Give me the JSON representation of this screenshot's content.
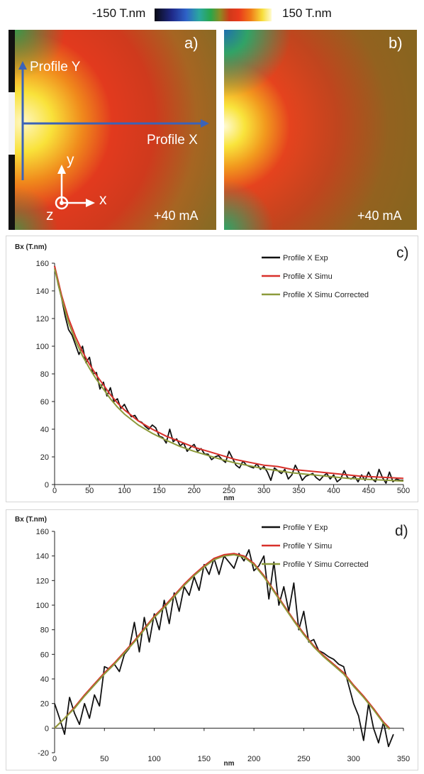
{
  "colorbar": {
    "min_label": "-150 T.nm",
    "max_label": "150 T.nm",
    "colors": [
      "#0a0a14",
      "#1f2a8a",
      "#2e62c7",
      "#2aa7a0",
      "#29a64a",
      "#8c8a22",
      "#d0391a",
      "#e83a1c",
      "#f07a18",
      "#f7dd3a",
      "#fffbd0"
    ]
  },
  "panel_a": {
    "tag": "a)",
    "profile_y": "Profile Y",
    "profile_x": "Profile X",
    "current": "+40 mA",
    "axis_y": "y",
    "axis_x": "x",
    "axis_z": "z"
  },
  "panel_b": {
    "tag": "b)",
    "current": "+40 mA"
  },
  "chart_data": [
    {
      "type": "line",
      "panel_tag": "c)",
      "ylabel": "Bx (T.nm)",
      "xlabel": "nm",
      "xlim": [
        0,
        500
      ],
      "ylim": [
        0,
        160
      ],
      "xticks": [
        0,
        50,
        100,
        150,
        200,
        250,
        300,
        350,
        400,
        450,
        500
      ],
      "yticks": [
        0,
        20,
        40,
        60,
        80,
        100,
        120,
        140,
        160
      ],
      "grid": false,
      "legend_position": "top-right",
      "series": [
        {
          "name": "Profile X Exp",
          "color": "#111111",
          "x": [
            0,
            5,
            10,
            15,
            20,
            25,
            30,
            35,
            40,
            45,
            50,
            55,
            60,
            65,
            70,
            75,
            80,
            85,
            90,
            95,
            100,
            105,
            110,
            115,
            120,
            125,
            130,
            135,
            140,
            145,
            150,
            155,
            160,
            165,
            170,
            175,
            180,
            185,
            190,
            195,
            200,
            205,
            210,
            215,
            220,
            225,
            230,
            235,
            240,
            245,
            250,
            255,
            260,
            265,
            270,
            275,
            280,
            285,
            290,
            295,
            300,
            305,
            310,
            315,
            320,
            325,
            330,
            335,
            340,
            345,
            350,
            355,
            360,
            365,
            370,
            375,
            380,
            385,
            390,
            395,
            400,
            405,
            410,
            415,
            420,
            425,
            430,
            435,
            440,
            445,
            450,
            455,
            460,
            465,
            470,
            475,
            480,
            485,
            490,
            495,
            500
          ],
          "y": [
            158,
            145,
            135,
            122,
            112,
            108,
            101,
            94,
            100,
            88,
            92,
            80,
            81,
            69,
            74,
            64,
            70,
            60,
            62,
            55,
            58,
            53,
            49,
            50,
            46,
            45,
            42,
            40,
            43,
            41,
            35,
            34,
            30,
            40,
            31,
            33,
            28,
            30,
            24,
            27,
            29,
            24,
            26,
            22,
            22,
            18,
            20,
            21,
            18,
            16,
            24,
            19,
            14,
            12,
            17,
            14,
            13,
            12,
            15,
            11,
            13,
            9,
            3,
            12,
            10,
            8,
            11,
            4,
            7,
            14,
            9,
            3,
            6,
            7,
            8,
            5,
            3,
            6,
            8,
            4,
            7,
            2,
            4,
            10,
            5,
            4,
            6,
            2,
            7,
            3,
            9,
            4,
            2,
            11,
            5,
            1,
            9,
            2,
            4,
            3,
            3
          ]
        },
        {
          "name": "Profile X Simu",
          "color": "#d8302a",
          "x": [
            0,
            10,
            20,
            30,
            40,
            50,
            60,
            70,
            80,
            90,
            100,
            120,
            140,
            160,
            180,
            200,
            220,
            240,
            260,
            280,
            300,
            320,
            340,
            360,
            380,
            400,
            420,
            440,
            460,
            480,
            500
          ],
          "y": [
            158,
            137,
            120,
            107,
            96,
            87,
            79,
            72,
            65,
            59,
            54,
            46,
            40,
            35,
            31,
            27,
            24,
            21,
            18,
            16,
            14,
            13,
            11,
            10,
            9,
            8,
            7,
            6,
            5.5,
            5,
            4.5
          ]
        },
        {
          "name": "Profile X Simu Corrected",
          "color": "#8c9a3a",
          "x": [
            0,
            10,
            20,
            30,
            40,
            50,
            60,
            70,
            80,
            90,
            100,
            120,
            140,
            160,
            180,
            200,
            220,
            240,
            260,
            280,
            300,
            320,
            340,
            360,
            380,
            400,
            420,
            440,
            460,
            480,
            500
          ],
          "y": [
            156,
            135,
            117,
            104,
            93,
            84,
            76,
            69,
            62,
            56,
            51,
            43,
            37,
            32,
            27.5,
            24,
            21,
            18,
            15.5,
            13.5,
            11.5,
            10,
            8.5,
            7.5,
            6.5,
            5.5,
            4.5,
            4,
            3.5,
            3,
            2.5
          ]
        }
      ]
    },
    {
      "type": "line",
      "panel_tag": "d)",
      "ylabel": "Bx (T.nm)",
      "xlabel": "nm",
      "xlim": [
        0,
        350
      ],
      "ylim": [
        -20,
        160
      ],
      "xticks": [
        0,
        50,
        100,
        150,
        200,
        250,
        300,
        350
      ],
      "yticks": [
        -20,
        0,
        20,
        40,
        60,
        80,
        100,
        120,
        140,
        160
      ],
      "grid": false,
      "legend_position": "top-right",
      "series": [
        {
          "name": "Profile Y Exp",
          "color": "#111111",
          "x": [
            0,
            5,
            10,
            15,
            20,
            25,
            30,
            35,
            40,
            45,
            50,
            55,
            60,
            65,
            70,
            75,
            80,
            85,
            90,
            95,
            100,
            105,
            110,
            115,
            120,
            125,
            130,
            135,
            140,
            145,
            150,
            155,
            160,
            165,
            170,
            175,
            180,
            185,
            190,
            195,
            200,
            205,
            210,
            215,
            220,
            225,
            230,
            235,
            240,
            245,
            250,
            255,
            260,
            265,
            270,
            275,
            280,
            285,
            290,
            295,
            300,
            305,
            310,
            315,
            320,
            325,
            330,
            335,
            340
          ],
          "y": [
            20,
            8,
            -5,
            25,
            12,
            3,
            20,
            8,
            27,
            18,
            50,
            48,
            52,
            46,
            60,
            65,
            86,
            62,
            90,
            70,
            93,
            80,
            104,
            85,
            110,
            95,
            115,
            108,
            123,
            112,
            133,
            125,
            138,
            125,
            140,
            135,
            130,
            142,
            136,
            145,
            128,
            132,
            140,
            105,
            135,
            100,
            115,
            95,
            118,
            80,
            95,
            70,
            72,
            63,
            61,
            58,
            56,
            52,
            50,
            35,
            20,
            10,
            -10,
            20,
            0,
            -12,
            5,
            -15,
            -5
          ]
        },
        {
          "name": "Profile Y Simu",
          "color": "#d8302a",
          "x": [
            0,
            10,
            20,
            30,
            40,
            50,
            60,
            70,
            80,
            90,
            100,
            110,
            120,
            130,
            140,
            150,
            160,
            170,
            180,
            190,
            200,
            210,
            220,
            230,
            240,
            250,
            260,
            270,
            280,
            290,
            300,
            310,
            320,
            330,
            336
          ],
          "y": [
            0,
            8,
            17,
            27,
            36,
            45,
            53,
            62,
            71,
            81,
            91,
            99,
            108,
            117,
            125,
            132,
            138,
            141,
            142,
            140,
            134,
            124,
            112,
            100,
            88,
            77,
            67,
            59,
            52,
            45,
            35,
            26,
            16,
            5,
            0
          ]
        },
        {
          "name": "Profile Y Simu Corrected",
          "color": "#8c9a3a",
          "x": [
            0,
            10,
            20,
            30,
            40,
            50,
            60,
            70,
            80,
            90,
            100,
            110,
            120,
            130,
            140,
            150,
            160,
            170,
            180,
            190,
            200,
            210,
            220,
            230,
            240,
            250,
            260,
            270,
            280,
            290,
            300,
            310,
            320,
            330,
            336
          ],
          "y": [
            0,
            8,
            16,
            26,
            35,
            44,
            52,
            61,
            70,
            80,
            90,
            98,
            107,
            116,
            124,
            131,
            137,
            140,
            141,
            139,
            133,
            123,
            111,
            99,
            87,
            76,
            66,
            58,
            51,
            44,
            34,
            25,
            15,
            4,
            -1
          ]
        }
      ]
    }
  ]
}
